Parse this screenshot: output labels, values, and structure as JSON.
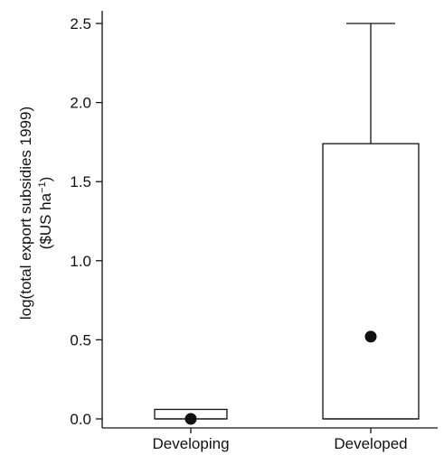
{
  "chart_data": {
    "type": "box",
    "ylabel_line1": "log(total export subsidies 1999)",
    "ylabel_line2_prefix": "($US ha",
    "ylabel_line2_sup": "−1",
    "ylabel_line2_suffix": ")",
    "ylim": [
      -0.05,
      2.55
    ],
    "yticks": [
      "0.0",
      "0.5",
      "1.0",
      "1.5",
      "2.0",
      "2.5"
    ],
    "ytick_values": [
      0.0,
      0.5,
      1.0,
      1.5,
      2.0,
      2.5
    ],
    "categories": [
      "Developing",
      "Developed"
    ],
    "boxes": [
      {
        "category": "Developing",
        "q1": 0.0,
        "q3": 0.06,
        "whisker_low": 0.0,
        "whisker_high": 0.06,
        "median": 0.0,
        "point": 0.0
      },
      {
        "category": "Developed",
        "q1": 0.0,
        "q3": 1.74,
        "whisker_low": 0.0,
        "whisker_high": 2.5,
        "median": 0.0,
        "point": 0.52
      }
    ],
    "colors": {
      "ink": "#111111",
      "box_fill": "#ffffff"
    }
  }
}
